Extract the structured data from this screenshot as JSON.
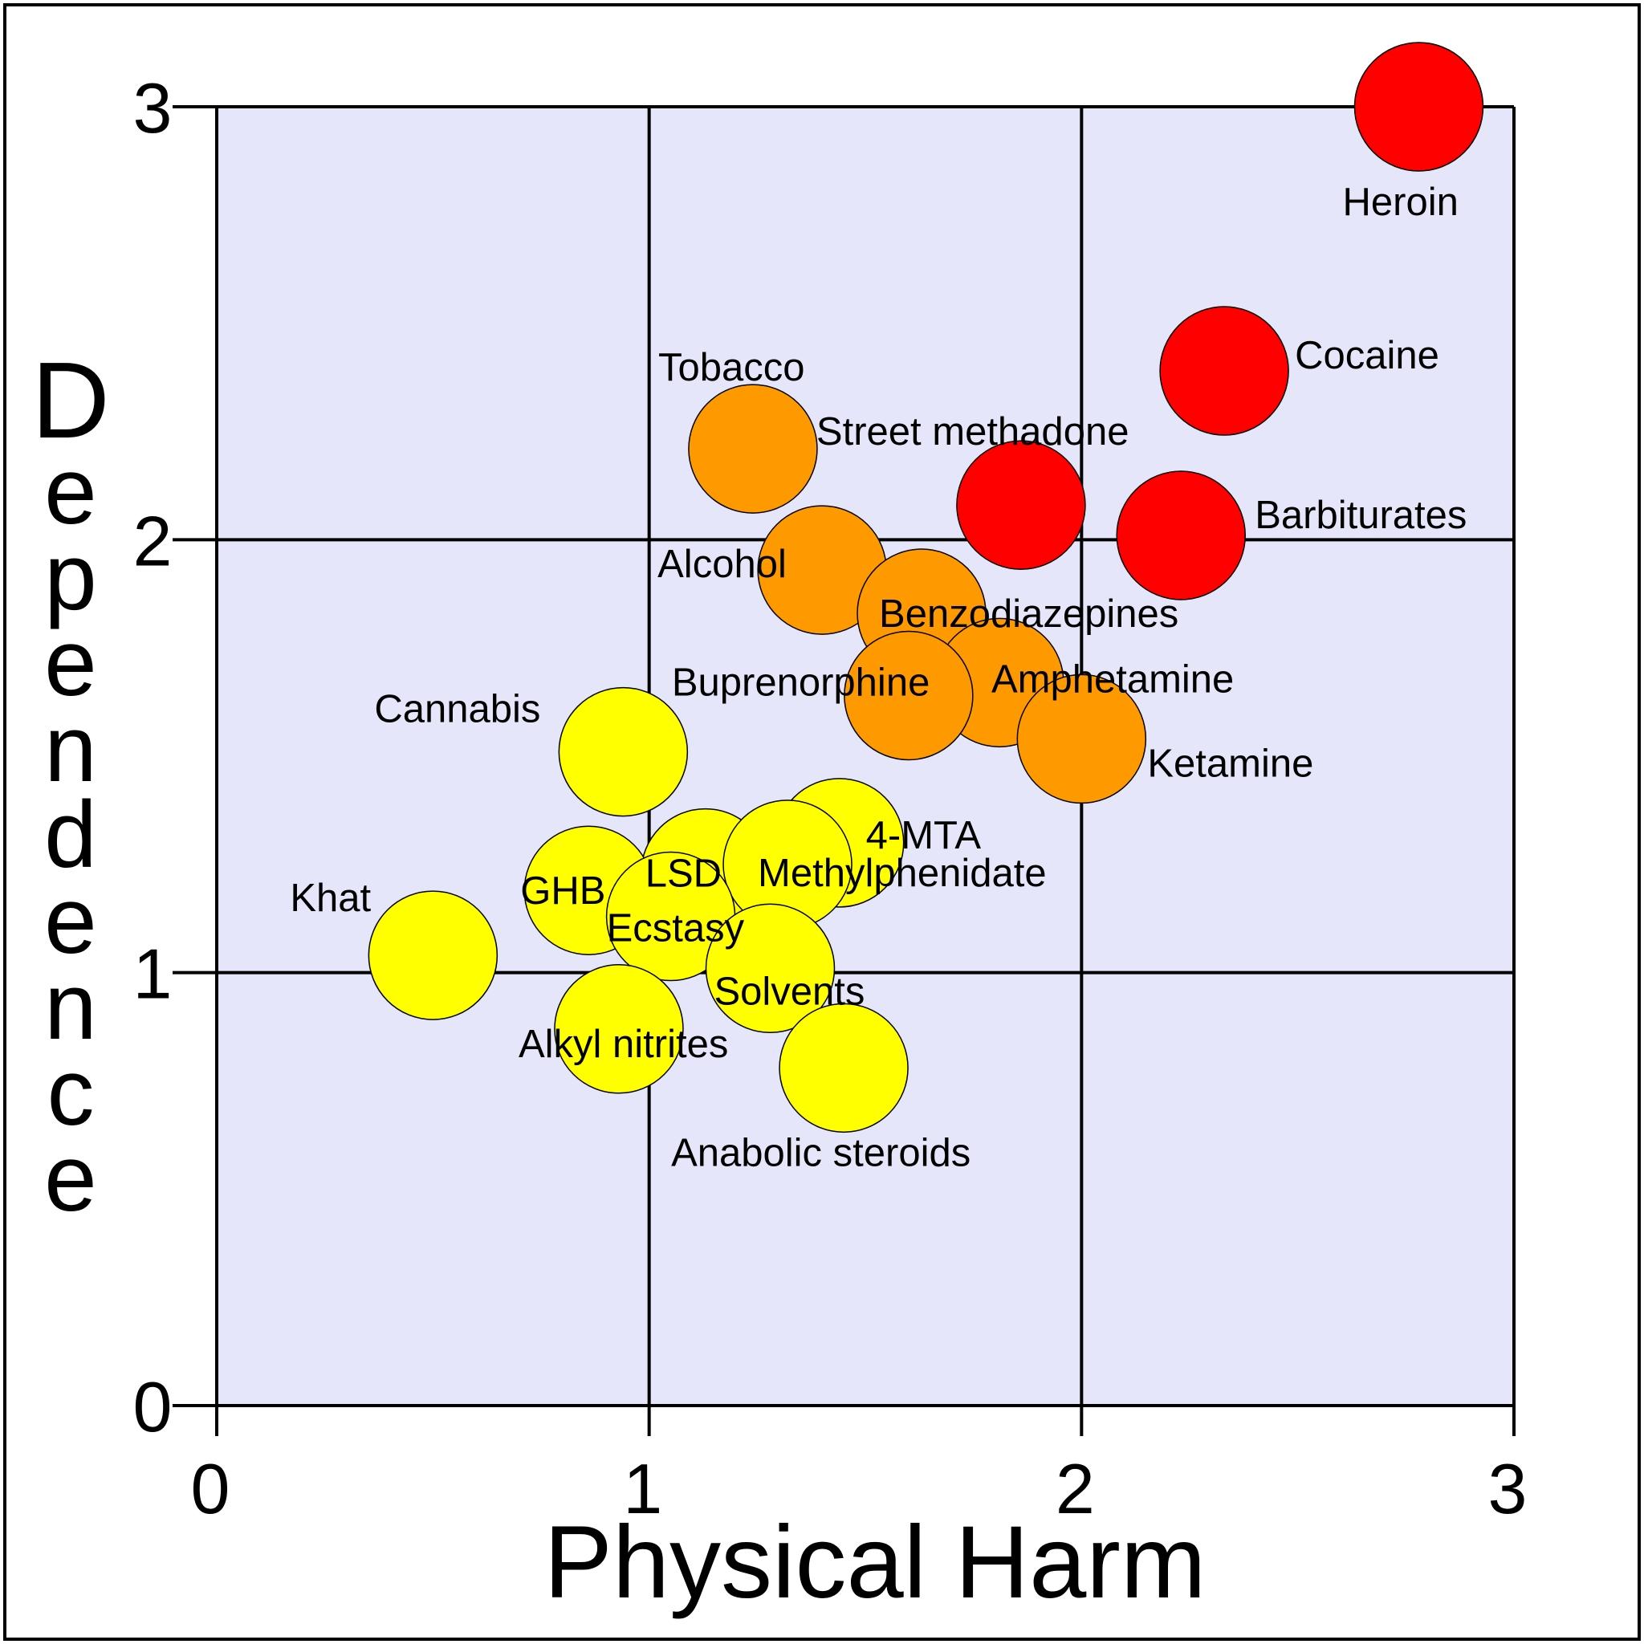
{
  "chart_data": {
    "type": "scatter",
    "xlabel": "Physical Harm",
    "ylabel": "Dependence",
    "xlim": [
      0,
      3
    ],
    "ylim": [
      0,
      3
    ],
    "x_ticks": [
      "0",
      "1",
      "2",
      "3"
    ],
    "y_ticks": [
      "0",
      "1",
      "2",
      "3"
    ],
    "grid": true,
    "colors": {
      "plot_background": "#e6e6fa",
      "high": "#ff0000",
      "medium": "#ff9900",
      "low": "#ffff00"
    },
    "points": [
      {
        "label": "Heroin",
        "x": 2.78,
        "y": 3.0,
        "level": "high"
      },
      {
        "label": "Cocaine",
        "x": 2.33,
        "y": 2.39,
        "level": "high"
      },
      {
        "label": "Street methadone",
        "x": 1.86,
        "y": 2.08,
        "level": "high"
      },
      {
        "label": "Barbiturates",
        "x": 2.23,
        "y": 2.01,
        "level": "high"
      },
      {
        "label": "Tobacco",
        "x": 1.24,
        "y": 2.21,
        "level": "medium"
      },
      {
        "label": "Alcohol",
        "x": 1.4,
        "y": 1.93,
        "level": "medium"
      },
      {
        "label": "Benzodiazepines",
        "x": 1.63,
        "y": 1.83,
        "level": "medium"
      },
      {
        "label": "Amphetamine",
        "x": 1.81,
        "y": 1.67,
        "level": "medium"
      },
      {
        "label": "Buprenorphine",
        "x": 1.6,
        "y": 1.64,
        "level": "medium"
      },
      {
        "label": "Ketamine",
        "x": 2.0,
        "y": 1.54,
        "level": "medium"
      },
      {
        "label": "Cannabis",
        "x": 0.94,
        "y": 1.51,
        "level": "low"
      },
      {
        "label": "4-MTA",
        "x": 1.44,
        "y": 1.3,
        "level": "low"
      },
      {
        "label": "LSD",
        "x": 1.13,
        "y": 1.23,
        "level": "low"
      },
      {
        "label": "Methylphenidate",
        "x": 1.32,
        "y": 1.25,
        "level": "low"
      },
      {
        "label": "GHB",
        "x": 0.86,
        "y": 1.19,
        "level": "low"
      },
      {
        "label": "Ecstasy",
        "x": 1.05,
        "y": 1.13,
        "level": "low"
      },
      {
        "label": "Solvents",
        "x": 1.28,
        "y": 1.01,
        "level": "low"
      },
      {
        "label": "Khat",
        "x": 0.5,
        "y": 1.04,
        "level": "low"
      },
      {
        "label": "Alkyl nitrites",
        "x": 0.93,
        "y": 0.87,
        "level": "low"
      },
      {
        "label": "Anabolic steroids",
        "x": 1.45,
        "y": 0.78,
        "level": "low"
      }
    ]
  }
}
